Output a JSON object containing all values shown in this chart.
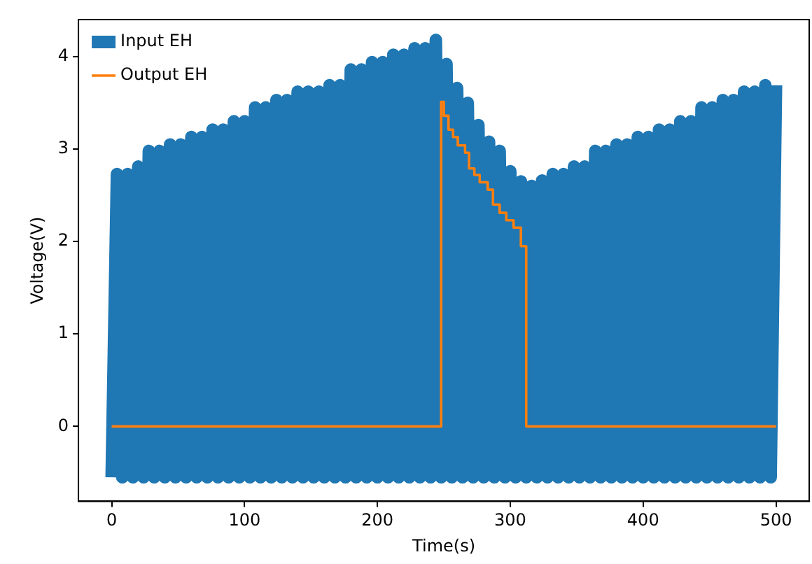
{
  "chart_data": {
    "type": "line",
    "xlabel": "Time(s)",
    "ylabel": "Voltage(V)",
    "xlim": [
      -25,
      525
    ],
    "ylim": [
      -0.81,
      4.4
    ],
    "xticks": [
      0,
      100,
      200,
      300,
      400,
      500
    ],
    "yticks": [
      0,
      1,
      2,
      3,
      4
    ],
    "grid": false,
    "legend": "top left",
    "marker": "none",
    "line_style": "solid",
    "series": [
      {
        "name": "Input EH",
        "color": "#1f77b4",
        "x": [
          0,
          4,
          8,
          12,
          16,
          20,
          24,
          28,
          32,
          36,
          40,
          44,
          48,
          52,
          56,
          60,
          64,
          68,
          72,
          76,
          80,
          84,
          88,
          92,
          96,
          100,
          104,
          108,
          112,
          116,
          120,
          124,
          128,
          132,
          136,
          140,
          144,
          148,
          152,
          156,
          160,
          164,
          168,
          172,
          176,
          180,
          184,
          188,
          192,
          196,
          200,
          204,
          208,
          212,
          216,
          220,
          224,
          228,
          232,
          236,
          240,
          244,
          248,
          252,
          256,
          260,
          264,
          268,
          272,
          276,
          280,
          284,
          288,
          292,
          296,
          300,
          304,
          308,
          312,
          316,
          320,
          324,
          328,
          332,
          336,
          340,
          344,
          348,
          352,
          356,
          360,
          364,
          368,
          372,
          376,
          380,
          384,
          388,
          392,
          396,
          400,
          404,
          408,
          412,
          416,
          420,
          424,
          428,
          432,
          436,
          440,
          444,
          448,
          452,
          456,
          460,
          464,
          468,
          472,
          476,
          480,
          484,
          488,
          492,
          496,
          500
        ],
        "values": [
          -0.55,
          2.73,
          -0.55,
          2.73,
          -0.55,
          2.81,
          -0.55,
          2.98,
          -0.55,
          2.98,
          -0.55,
          3.05,
          -0.55,
          3.05,
          -0.55,
          3.13,
          -0.55,
          3.13,
          -0.55,
          3.21,
          -0.55,
          3.21,
          -0.55,
          3.3,
          -0.55,
          3.3,
          -0.55,
          3.45,
          -0.55,
          3.45,
          -0.55,
          3.53,
          -0.55,
          3.53,
          -0.55,
          3.62,
          -0.55,
          3.62,
          -0.55,
          3.62,
          -0.55,
          3.69,
          -0.55,
          3.69,
          -0.55,
          3.86,
          -0.55,
          3.86,
          -0.55,
          3.94,
          -0.55,
          3.94,
          -0.55,
          4.02,
          -0.55,
          4.02,
          -0.55,
          4.09,
          -0.55,
          4.09,
          -0.55,
          4.18,
          -0.55,
          3.92,
          -0.55,
          3.66,
          -0.55,
          3.5,
          -0.55,
          3.26,
          -0.55,
          3.08,
          -0.55,
          2.98,
          -0.55,
          2.76,
          -0.55,
          2.65,
          -0.55,
          2.6,
          -0.55,
          2.66,
          -0.55,
          2.73,
          -0.55,
          2.73,
          -0.55,
          2.81,
          -0.55,
          2.81,
          -0.55,
          2.98,
          -0.55,
          2.98,
          -0.55,
          3.05,
          -0.55,
          3.05,
          -0.55,
          3.13,
          -0.55,
          3.13,
          -0.55,
          3.21,
          -0.55,
          3.21,
          -0.55,
          3.3,
          -0.55,
          3.3,
          -0.55,
          3.45,
          -0.55,
          3.45,
          -0.55,
          3.53,
          -0.55,
          3.53,
          -0.55,
          3.62,
          -0.55,
          3.62,
          -0.55,
          3.69,
          -0.55,
          3.69
        ]
      },
      {
        "name": "Output EH",
        "type": "step",
        "color": "#ff7f0e",
        "x": [
          0,
          248,
          250,
          253.5,
          257,
          260.5,
          266,
          269,
          273,
          277,
          283,
          287,
          292,
          297,
          302.5,
          308,
          312,
          500
        ],
        "values": [
          0,
          3.51,
          3.36,
          3.21,
          3.13,
          3.04,
          2.96,
          2.79,
          2.72,
          2.64,
          2.56,
          2.4,
          2.31,
          2.23,
          2.15,
          1.95,
          0,
          0
        ]
      }
    ]
  }
}
